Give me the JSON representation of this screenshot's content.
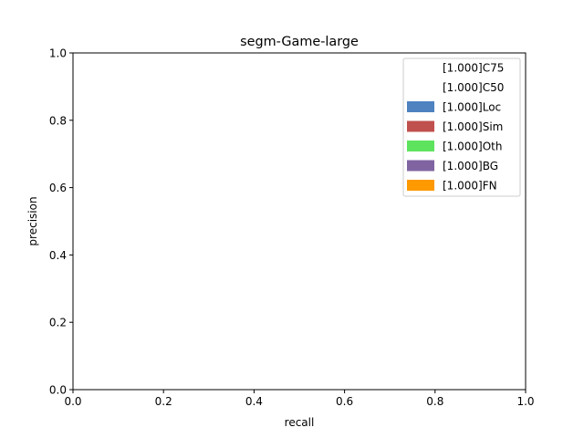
{
  "chart_data": {
    "type": "area",
    "title": "segm-Game-large",
    "xlabel": "recall",
    "ylabel": "precision",
    "xlim": [
      0,
      1
    ],
    "ylim": [
      0,
      1
    ],
    "grid": false,
    "legend_position": "top-right",
    "x_ticks": [
      "0.0",
      "0.2",
      "0.4",
      "0.6",
      "0.8",
      "1.0"
    ],
    "y_ticks": [
      "0.0",
      "0.2",
      "0.4",
      "0.6",
      "0.8",
      "1.0"
    ],
    "series": [
      {
        "name": "[1.000]C75",
        "color": "#ffffff",
        "x": [
          0,
          1
        ],
        "y": [
          1,
          1
        ]
      },
      {
        "name": "[1.000]C50",
        "color": "#ffffff",
        "x": [
          0,
          1
        ],
        "y": [
          1,
          1
        ]
      },
      {
        "name": "[1.000]Loc",
        "color": "#4e82c0",
        "x": [
          0,
          1
        ],
        "y": [
          1,
          1
        ]
      },
      {
        "name": "[1.000]Sim",
        "color": "#c0504d",
        "x": [
          0,
          1
        ],
        "y": [
          1,
          1
        ]
      },
      {
        "name": "[1.000]Oth",
        "color": "#5ee35e",
        "x": [
          0,
          1
        ],
        "y": [
          1,
          1
        ]
      },
      {
        "name": "[1.000]BG",
        "color": "#8064a2",
        "x": [
          0,
          1
        ],
        "y": [
          1,
          1
        ]
      },
      {
        "name": "[1.000]FN",
        "color": "#ff9900",
        "x": [
          0,
          1
        ],
        "y": [
          1,
          1
        ]
      }
    ]
  }
}
